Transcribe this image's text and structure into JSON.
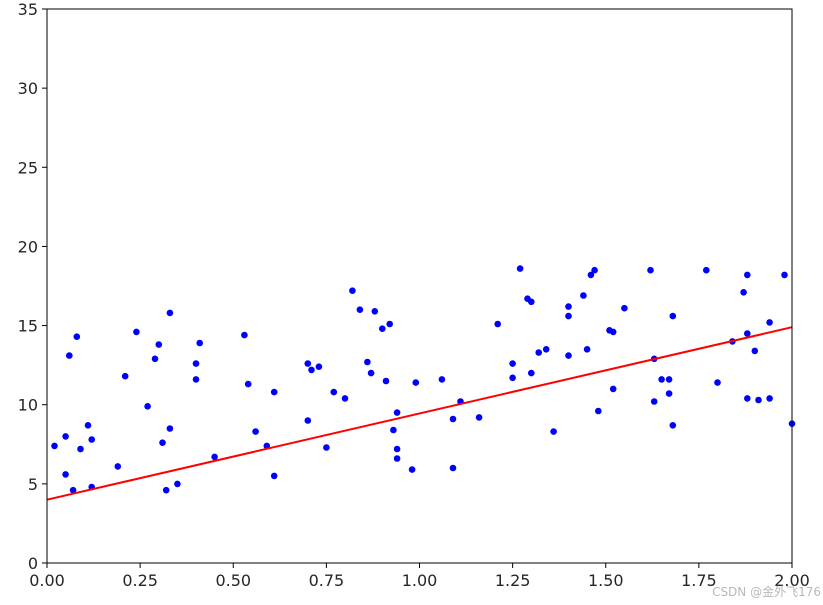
{
  "chart_data": {
    "type": "scatter",
    "title": "",
    "xlabel": "",
    "ylabel": "",
    "xlim": [
      0,
      2
    ],
    "ylim": [
      0,
      35
    ],
    "grid": false,
    "x_ticks": [
      "0.00",
      "0.25",
      "0.50",
      "0.75",
      "1.00",
      "1.25",
      "1.50",
      "1.75",
      "2.00"
    ],
    "y_ticks": [
      "0",
      "5",
      "10",
      "15",
      "20",
      "25",
      "30",
      "35"
    ],
    "series": [
      {
        "type": "scatter",
        "color": "#0000ff",
        "points": [
          [
            0.02,
            7.4
          ],
          [
            0.05,
            5.6
          ],
          [
            0.05,
            8.0
          ],
          [
            0.06,
            13.1
          ],
          [
            0.07,
            4.6
          ],
          [
            0.08,
            14.3
          ],
          [
            0.09,
            7.2
          ],
          [
            0.11,
            8.7
          ],
          [
            0.12,
            7.8
          ],
          [
            0.12,
            4.8
          ],
          [
            0.19,
            6.1
          ],
          [
            0.21,
            11.8
          ],
          [
            0.24,
            14.6
          ],
          [
            0.27,
            9.9
          ],
          [
            0.29,
            12.9
          ],
          [
            0.3,
            13.8
          ],
          [
            0.31,
            7.6
          ],
          [
            0.32,
            4.6
          ],
          [
            0.33,
            15.8
          ],
          [
            0.33,
            8.5
          ],
          [
            0.35,
            5.0
          ],
          [
            0.4,
            12.6
          ],
          [
            0.4,
            11.6
          ],
          [
            0.41,
            13.9
          ],
          [
            0.45,
            6.7
          ],
          [
            0.53,
            14.4
          ],
          [
            0.54,
            11.3
          ],
          [
            0.56,
            8.3
          ],
          [
            0.59,
            7.4
          ],
          [
            0.61,
            10.8
          ],
          [
            0.61,
            5.5
          ],
          [
            0.7,
            9.0
          ],
          [
            0.7,
            12.6
          ],
          [
            0.71,
            12.2
          ],
          [
            0.73,
            12.4
          ],
          [
            0.75,
            7.3
          ],
          [
            0.77,
            10.8
          ],
          [
            0.8,
            10.4
          ],
          [
            0.82,
            17.2
          ],
          [
            0.84,
            16.0
          ],
          [
            0.86,
            12.7
          ],
          [
            0.87,
            12.0
          ],
          [
            0.88,
            15.9
          ],
          [
            0.9,
            14.8
          ],
          [
            0.91,
            11.5
          ],
          [
            0.92,
            15.1
          ],
          [
            0.93,
            8.4
          ],
          [
            0.94,
            9.5
          ],
          [
            0.94,
            7.2
          ],
          [
            0.94,
            6.6
          ],
          [
            0.98,
            5.9
          ],
          [
            0.99,
            11.4
          ],
          [
            1.06,
            11.6
          ],
          [
            1.09,
            9.1
          ],
          [
            1.09,
            6.0
          ],
          [
            1.11,
            10.2
          ],
          [
            1.16,
            9.2
          ],
          [
            1.21,
            15.1
          ],
          [
            1.25,
            12.6
          ],
          [
            1.25,
            11.7
          ],
          [
            1.27,
            18.6
          ],
          [
            1.29,
            16.7
          ],
          [
            1.3,
            16.5
          ],
          [
            1.3,
            12.0
          ],
          [
            1.32,
            13.3
          ],
          [
            1.34,
            13.5
          ],
          [
            1.36,
            8.3
          ],
          [
            1.4,
            13.1
          ],
          [
            1.4,
            16.2
          ],
          [
            1.4,
            15.6
          ],
          [
            1.44,
            16.9
          ],
          [
            1.45,
            13.5
          ],
          [
            1.46,
            18.2
          ],
          [
            1.47,
            18.5
          ],
          [
            1.48,
            9.6
          ],
          [
            1.51,
            14.7
          ],
          [
            1.52,
            14.6
          ],
          [
            1.52,
            11.0
          ],
          [
            1.55,
            16.1
          ],
          [
            1.62,
            18.5
          ],
          [
            1.63,
            12.9
          ],
          [
            1.63,
            10.2
          ],
          [
            1.65,
            11.6
          ],
          [
            1.67,
            11.6
          ],
          [
            1.67,
            10.7
          ],
          [
            1.68,
            15.6
          ],
          [
            1.68,
            8.7
          ],
          [
            1.77,
            18.5
          ],
          [
            1.8,
            11.4
          ],
          [
            1.84,
            14.0
          ],
          [
            1.87,
            17.1
          ],
          [
            1.88,
            10.4
          ],
          [
            1.88,
            18.2
          ],
          [
            1.88,
            14.5
          ],
          [
            1.9,
            13.4
          ],
          [
            1.91,
            10.3
          ],
          [
            1.94,
            10.4
          ],
          [
            1.94,
            15.2
          ],
          [
            1.98,
            18.2
          ],
          [
            2.0,
            8.8
          ]
        ]
      },
      {
        "type": "line",
        "color": "#ff0000",
        "points": [
          [
            0,
            4.0
          ],
          [
            2,
            14.9
          ]
        ]
      }
    ]
  },
  "watermark": "CSDN @金外飞176"
}
